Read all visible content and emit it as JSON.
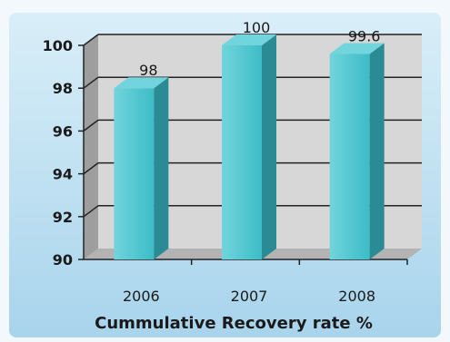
{
  "chart_data": {
    "type": "bar",
    "categories": [
      "2006",
      "2007",
      "2008"
    ],
    "values": [
      98,
      100,
      99.6
    ],
    "data_labels": [
      "98",
      "100",
      "99.6"
    ],
    "title": "",
    "xlabel": "Cummulative Recovery rate %",
    "ylabel": "",
    "ylim": [
      90,
      100
    ],
    "yticks": [
      90,
      92,
      94,
      96,
      98,
      100
    ],
    "grid": true,
    "legend": "none",
    "style": "3d-column",
    "colors": {
      "panel_top": "#d9eef8",
      "panel_bottom": "#a8d4ec",
      "bar_front": "#3cbcc6",
      "bar_side": "#2a8b94",
      "bar_top": "#72d4dc",
      "plot_back": "#d7d7d7",
      "floor": "#b3b3b3"
    }
  }
}
